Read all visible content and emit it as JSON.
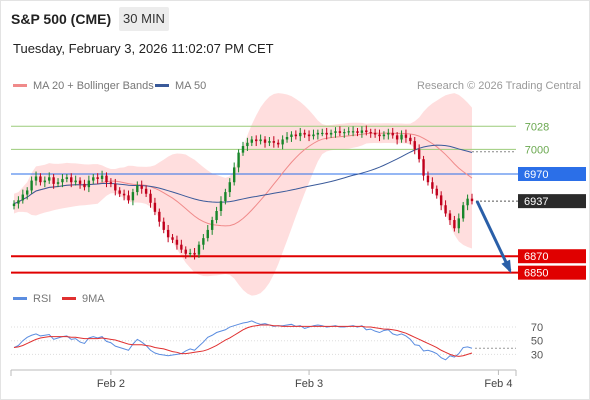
{
  "header": {
    "title": "S&P 500 (CME)",
    "interval": "30 MIN",
    "datetime": "Tuesday, February 3, 2026 11:02:07 PM CET",
    "research": "Research © 2026 Trading Central"
  },
  "colors": {
    "up": "#18862a",
    "down": "#c0001c",
    "band": "#ffd8d8",
    "ma20": "#f08a8a",
    "ma50": "#3a5a9a",
    "green_level": "#9ccc7a",
    "blue_level": "#2b6fe8",
    "red_level": "#e00000",
    "last": "#2a2a2a",
    "arrow": "#2a5fa8",
    "rsi": "#5b8de0",
    "rsi_ma": "#e03030"
  },
  "chart_data": [
    {
      "type": "candlestick",
      "title": "S&P 500 (CME)",
      "interval": "30 MIN",
      "x_ticks": [
        "Feb 2",
        "Feb 3",
        "Feb 4"
      ],
      "x_tick_index": [
        22,
        67,
        110
      ],
      "ylim": [
        6835,
        7060
      ],
      "legend": [
        {
          "name": "MA 20 + Bollinger Bands",
          "color": "#f08a8a"
        },
        {
          "name": "MA 50",
          "color": "#3a5a9a"
        }
      ],
      "levels": [
        {
          "label": "7028",
          "value": 7028,
          "style": "green"
        },
        {
          "label": "7000",
          "value": 7000,
          "style": "green"
        },
        {
          "label": "6970",
          "value": 6970,
          "style": "blue"
        },
        {
          "label": "6937",
          "value": 6937,
          "style": "last"
        },
        {
          "label": "6870",
          "value": 6870,
          "style": "red"
        },
        {
          "label": "6850",
          "value": 6850,
          "style": "red"
        }
      ],
      "forecast_arrow": {
        "from": 6937,
        "to": 6850
      },
      "close": [
        6934,
        6938,
        6945,
        6950,
        6962,
        6967,
        6960,
        6962,
        6966,
        6958,
        6960,
        6964,
        6966,
        6960,
        6962,
        6958,
        6954,
        6962,
        6966,
        6964,
        6968,
        6960,
        6958,
        6950,
        6946,
        6944,
        6938,
        6948,
        6956,
        6952,
        6946,
        6935,
        6924,
        6912,
        6902,
        6893,
        6890,
        6884,
        6878,
        6873,
        6874,
        6872,
        6884,
        6892,
        6902,
        6914,
        6925,
        6937,
        6948,
        6960,
        6978,
        6996,
        7004,
        7008,
        7012,
        7010,
        7012,
        7008,
        7010,
        7008,
        7006,
        7012,
        7015,
        7018,
        7016,
        7020,
        7018,
        7016,
        7018,
        7020,
        7020,
        7018,
        7020,
        7022,
        7020,
        7021,
        7022,
        7022,
        7020,
        7023,
        7021,
        7020,
        7018,
        7016,
        7018,
        7020,
        7017,
        7012,
        7018,
        7014,
        7010,
        7000,
        6988,
        6968,
        6960,
        6952,
        6944,
        6932,
        6922,
        6914,
        6904,
        6916,
        6932,
        6940,
        6937
      ]
    },
    {
      "type": "line",
      "title": "RSI",
      "legend": [
        {
          "name": "RSI",
          "color": "#5b8de0"
        },
        {
          "name": "9MA",
          "color": "#e03030"
        }
      ],
      "y_ticks": [
        70,
        50,
        30
      ],
      "ylim": [
        10,
        95
      ],
      "rsi": [
        40,
        43,
        50,
        55,
        58,
        60,
        57,
        58,
        59,
        52,
        54,
        56,
        57,
        52,
        53,
        48,
        46,
        54,
        56,
        54,
        56,
        49,
        47,
        42,
        40,
        38,
        36,
        45,
        52,
        48,
        43,
        36,
        32,
        30,
        29,
        28,
        29,
        30,
        31,
        35,
        38,
        36,
        42,
        48,
        55,
        58,
        62,
        64,
        66,
        70,
        72,
        74,
        76,
        77,
        79,
        76,
        74,
        75,
        73,
        71,
        72,
        72,
        73,
        74,
        71,
        72,
        68,
        70,
        72,
        73,
        72,
        70,
        71,
        72,
        70,
        70,
        71,
        72,
        70,
        72,
        66,
        67,
        64,
        62,
        65,
        66,
        60,
        58,
        60,
        57,
        52,
        44,
        43,
        35,
        36,
        34,
        31,
        25,
        22,
        28,
        26,
        31,
        40,
        41,
        39
      ],
      "rsi_ma": [
        40,
        41,
        43,
        46,
        49,
        52,
        54,
        55,
        56,
        56,
        56,
        56,
        56,
        55,
        55,
        54,
        53,
        53,
        53,
        53,
        54,
        53,
        52,
        51,
        49,
        47,
        45,
        44,
        44,
        44,
        43,
        42,
        40,
        39,
        38,
        36,
        34,
        33,
        31,
        31,
        32,
        33,
        34,
        35,
        37,
        40,
        43,
        47,
        51,
        54,
        58,
        62,
        66,
        69,
        71,
        72,
        73,
        73,
        73,
        72,
        72,
        71,
        71,
        71,
        71,
        71,
        71,
        71,
        71,
        71,
        71,
        71,
        71,
        71,
        71,
        71,
        71,
        71,
        71,
        71,
        70,
        70,
        69,
        68,
        67,
        67,
        66,
        65,
        63,
        61,
        58,
        55,
        52,
        49,
        46,
        43,
        40,
        36,
        33,
        30,
        28,
        27,
        28,
        30,
        32
      ]
    }
  ]
}
